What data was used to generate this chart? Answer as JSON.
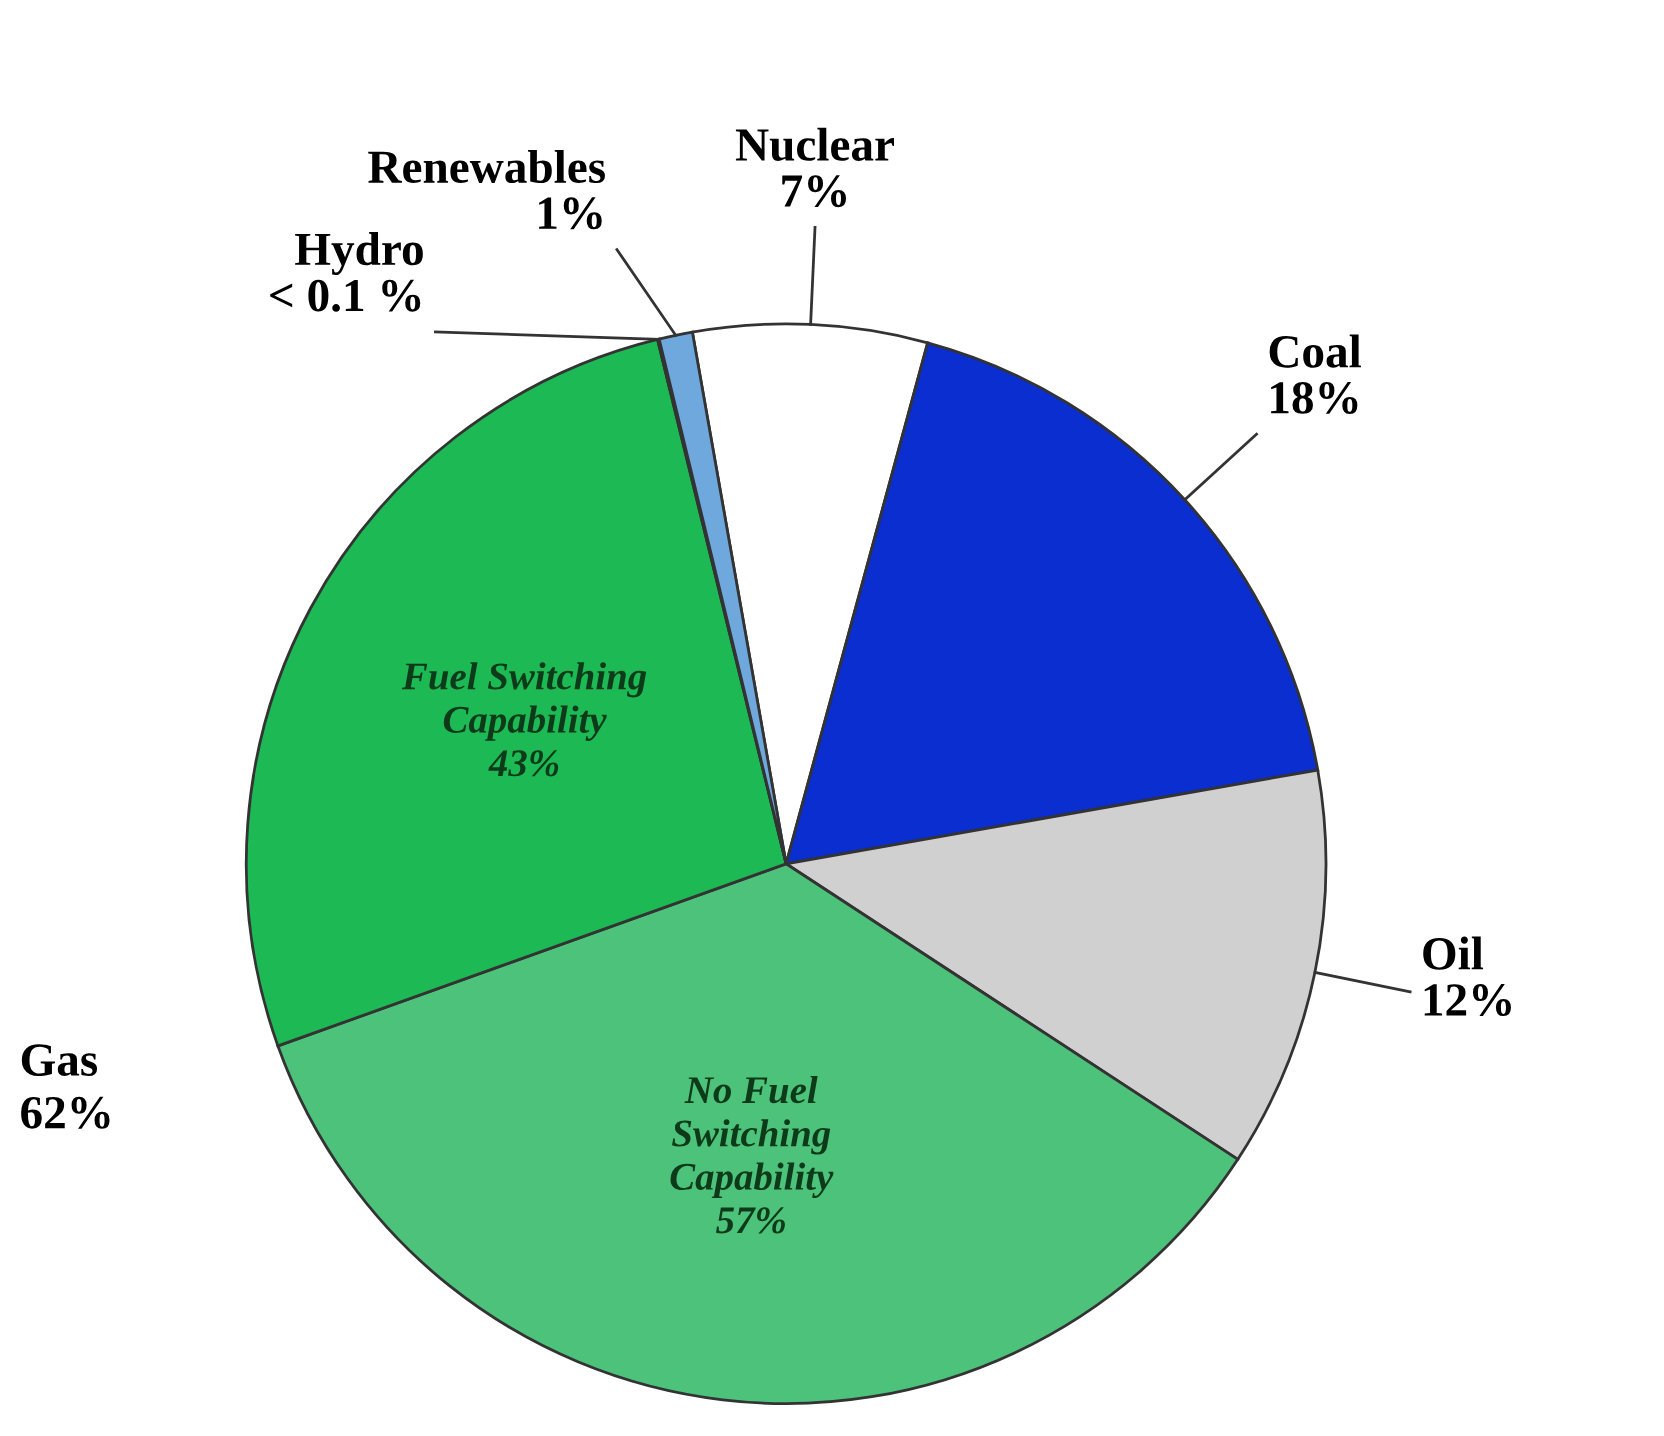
{
  "chart_data": {
    "type": "pie",
    "categories": [
      "Nuclear",
      "Coal",
      "Oil",
      "No Fuel\nSwitching\nCapability\n57%",
      "Fuel Switching\nCapability\n43%",
      "Hydro",
      "Renewables"
    ],
    "values": [
      7,
      18,
      12,
      35.3,
      26.65,
      0.05,
      1
    ],
    "colors": [
      "#ffffff",
      "#0a2ecf",
      "#d0d0d0",
      "#4cc27a",
      "#1db954",
      "#1a1a1a",
      "#6fa8dc"
    ],
    "value_labels": [
      "7%",
      "18%",
      "12%",
      null,
      null,
      "< 0.1 %",
      "1%"
    ],
    "annotations": [
      "Gas\n62%"
    ],
    "legend": false
  }
}
